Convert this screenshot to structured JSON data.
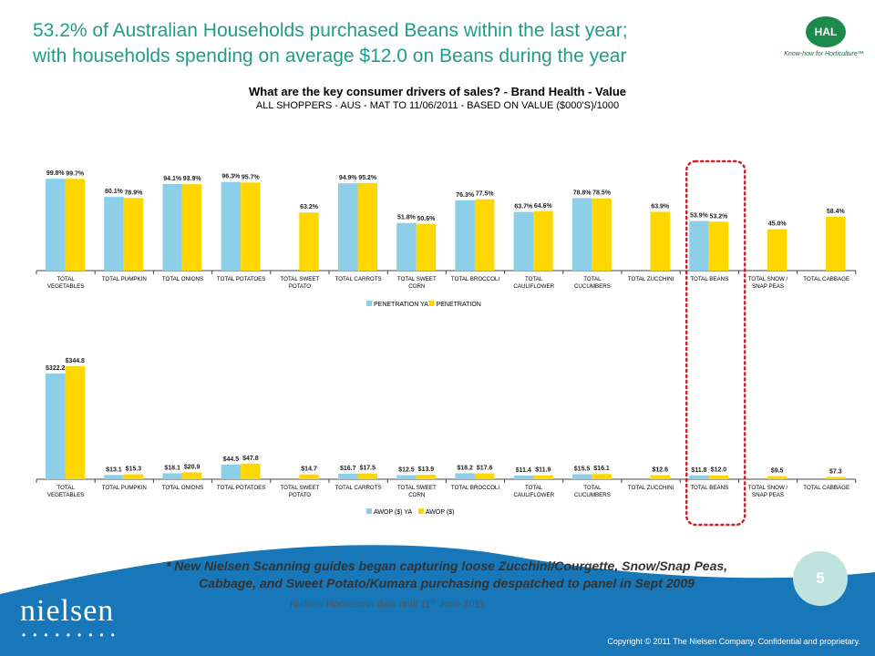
{
  "headline": {
    "line1": "53.2% of Australian Households purchased Beans within the last year;",
    "line2": "with households spending on average $12.0 on Beans during the year"
  },
  "logo": {
    "name": "HAL",
    "tagline": "Know-how for Horticulture™"
  },
  "colors": {
    "ya": "#8dcfe8",
    "current": "#ffd700",
    "highlight": "#d0202a",
    "teal": "#1f9c8c",
    "band": "#1777b8"
  },
  "chart_data": [
    {
      "type": "bar",
      "title": "What are the key consumer drivers of sales? - Brand Health - Value",
      "subtitle": "ALL SHOPPERS - AUS - MAT TO 11/06/2011 - BASED ON VALUE ($000'S)/1000",
      "categories": [
        [
          "TOTAL",
          "VEGETABLES"
        ],
        [
          "TOTAL PUMPKIN"
        ],
        [
          "TOTAL ONIONS"
        ],
        [
          "TOTAL POTATOES"
        ],
        [
          "TOTAL SWEET",
          "POTATO"
        ],
        [
          "TOTAL CARROTS"
        ],
        [
          "TOTAL SWEET",
          "CORN"
        ],
        [
          "TOTAL BROCCOLI"
        ],
        [
          "TOTAL",
          "CAULIFLOWER"
        ],
        [
          "TOTAL",
          "CUCUMBERS"
        ],
        [
          "TOTAL ZUCCHINI"
        ],
        [
          "TOTAL BEANS"
        ],
        [
          "TOTAL SNOW /",
          "SNAP PEAS"
        ],
        [
          "TOTAL CABBAGE"
        ]
      ],
      "ylim": [
        0,
        100
      ],
      "legend": "bottom",
      "series": [
        {
          "name": "PENETRATION YA",
          "values": [
            99.8,
            80.1,
            94.1,
            96.3,
            null,
            94.9,
            51.8,
            76.3,
            63.7,
            78.8,
            null,
            53.9,
            null,
            null
          ],
          "labels": [
            "99.8%",
            "80.1%",
            "94.1%",
            "96.3%",
            "",
            "94.9%",
            "51.8%",
            "76.3%",
            "63.7%",
            "78.8%",
            "",
            "53.9%",
            "",
            ""
          ]
        },
        {
          "name": "PENETRATION",
          "values": [
            99.7,
            78.9,
            93.9,
            95.7,
            63.2,
            95.2,
            50.6,
            77.5,
            64.6,
            78.5,
            63.9,
            53.2,
            45.0,
            58.4
          ],
          "labels": [
            "99.7%",
            "78.9%",
            "93.9%",
            "95.7%",
            "63.2%",
            "95.2%",
            "50.6%",
            "77.5%",
            "64.6%",
            "78.5%",
            "63.9%",
            "53.2%",
            "45.0%",
            "58.4%"
          ]
        }
      ]
    },
    {
      "type": "bar",
      "categories": [
        [
          "TOTAL",
          "VEGETABLES"
        ],
        [
          "TOTAL PUMPKIN"
        ],
        [
          "TOTAL ONIONS"
        ],
        [
          "TOTAL POTATOES"
        ],
        [
          "TOTAL SWEET",
          "POTATO"
        ],
        [
          "TOTAL CARROTS"
        ],
        [
          "TOTAL SWEET",
          "CORN"
        ],
        [
          "TOTAL BROCCOLI"
        ],
        [
          "TOTAL",
          "CAULIFLOWER"
        ],
        [
          "TOTAL",
          "CUCUMBERS"
        ],
        [
          "TOTAL ZUCCHINI"
        ],
        [
          "TOTAL BEANS"
        ],
        [
          "TOTAL SNOW /",
          "SNAP PEAS"
        ],
        [
          "TOTAL CABBAGE"
        ]
      ],
      "ylim": [
        0,
        350
      ],
      "legend": "bottom",
      "series": [
        {
          "name": "AWOP ($) YA",
          "values": [
            322.2,
            13.1,
            18.1,
            44.5,
            null,
            16.7,
            12.5,
            18.2,
            11.4,
            15.5,
            null,
            11.8,
            null,
            null
          ],
          "labels": [
            "$322.2",
            "$13.1",
            "$18.1",
            "$44.5",
            "",
            "$16.7",
            "$12.5",
            "$18.2",
            "$11.4",
            "$15.5",
            "",
            "$11.8",
            "",
            ""
          ]
        },
        {
          "name": "AWOP ($)",
          "values": [
            344.8,
            15.3,
            20.9,
            47.8,
            14.7,
            17.5,
            13.9,
            17.6,
            11.9,
            16.1,
            12.6,
            12.0,
            9.5,
            7.3
          ],
          "labels": [
            "$344.8",
            "$15.3",
            "$20.9",
            "$47.8",
            "$14.7",
            "$17.5",
            "$13.9",
            "$17.6",
            "$11.9",
            "$16.1",
            "$12.6",
            "$12.0",
            "$9.5",
            "$7.3"
          ]
        }
      ],
      "highlight_category": "TOTAL BEANS"
    }
  ],
  "footnote": {
    "line1": "* New Nielsen Scanning guides began capturing loose Zucchini/Courgette, Snow/Snap Peas,",
    "line2": "Cabbage, and Sweet Potato/Kumara purchasing despatched to panel in Sept 2009"
  },
  "source": {
    "text": "Nielsen Homescan data until 11",
    "sup": "th",
    "suffix": " June 2011"
  },
  "page_number": "5",
  "brand": {
    "name": "nielsen",
    "dots": "•••••••••"
  },
  "copyright": "Copyright © 2011 The Nielsen Company. Confidential and proprietary."
}
